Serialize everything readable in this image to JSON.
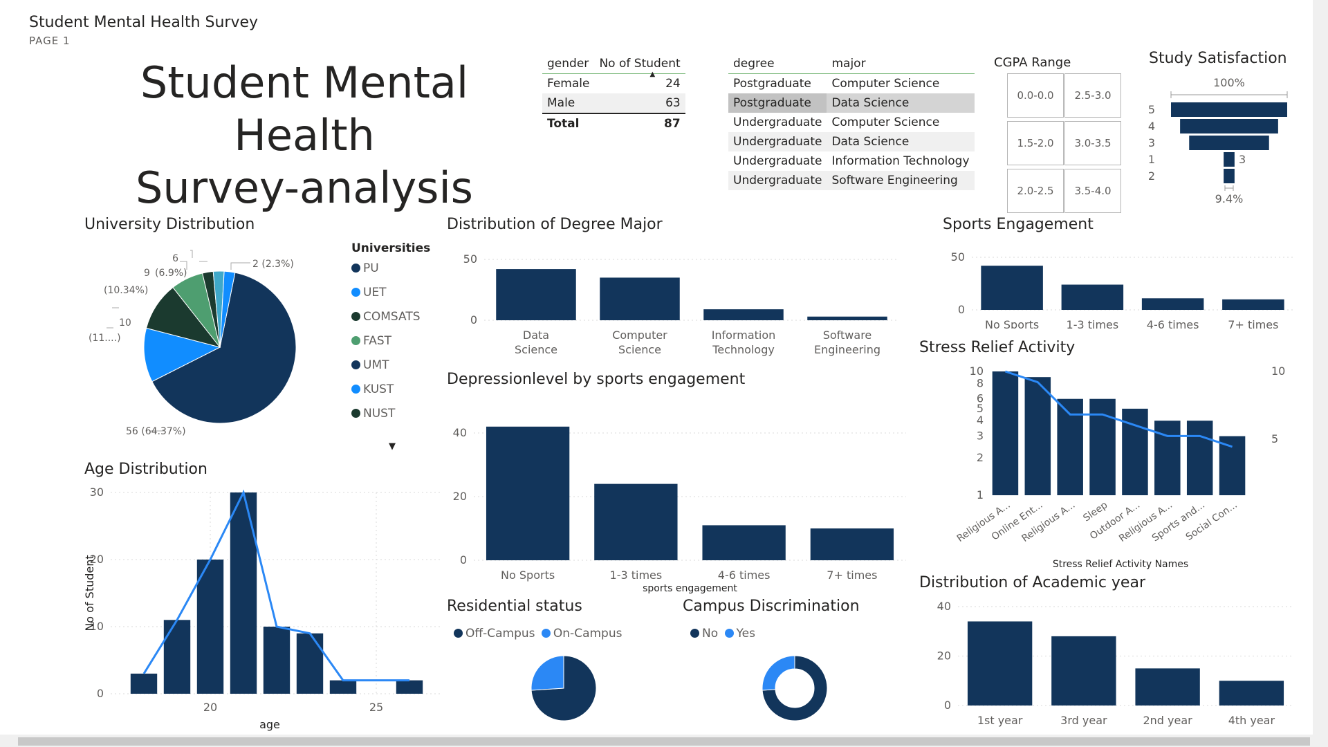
{
  "report": {
    "title": "Student Mental Health Survey",
    "page": "PAGE 1"
  },
  "heading": {
    "line1": "Student Mental Health",
    "line2": "Survey-analysis"
  },
  "gender_table": {
    "headers": [
      "gender",
      "No of Student"
    ],
    "rows": [
      [
        "Female",
        "24"
      ],
      [
        "Male",
        "63"
      ]
    ],
    "total": [
      "Total",
      "87"
    ]
  },
  "degree_table": {
    "headers": [
      "degree",
      "major"
    ],
    "rows": [
      [
        "Postgraduate",
        "Computer Science"
      ],
      [
        "Postgraduate",
        "Data Science"
      ],
      [
        "Undergraduate",
        "Computer Science"
      ],
      [
        "Undergraduate",
        "Data Science"
      ],
      [
        "Undergraduate",
        "Information Technology"
      ],
      [
        "Undergraduate",
        "Software Engineering"
      ]
    ]
  },
  "cgpa": {
    "title": "CGPA Range",
    "options": [
      "0.0-0.0",
      "2.5-3.0",
      "1.5-2.0",
      "3.0-3.5",
      "2.0-2.5",
      "3.5-4.0"
    ]
  },
  "colors": {
    "navy": "#12355b",
    "blue": "#2b88f5",
    "dark": "#1b3a2f",
    "green": "#4e9e70",
    "bright": "#118dff",
    "teal": "#3fa8c9"
  },
  "chart_data": [
    {
      "id": "study-satisfaction",
      "type": "funnel",
      "title": "Study Satisfaction",
      "categories": [
        "5",
        "4",
        "3",
        "1",
        "2"
      ],
      "values": [
        32,
        27,
        22,
        3,
        3
      ],
      "top_label": "100%",
      "bottom_label": "9.4%",
      "data_labels": [
        "3"
      ]
    },
    {
      "id": "university",
      "type": "pie",
      "title": "University Distribution",
      "legend_title": "Universities",
      "categories": [
        "PU",
        "UET",
        "COMSATS",
        "FAST",
        "UMT",
        "KUST",
        "NUST"
      ],
      "values": [
        56,
        10,
        9,
        6,
        2,
        2,
        2
      ],
      "labels": [
        "56 (64.37%)",
        "10",
        "(11....)",
        "9",
        "(10.34%)",
        "6",
        "(6.9%)",
        "2 (2.3%)"
      ]
    },
    {
      "id": "degree-major",
      "type": "bar",
      "title": "Distribution of Degree Major",
      "categories": [
        "Data Science",
        "Computer Science",
        "Information Technology",
        "Software Engineering"
      ],
      "values": [
        42,
        35,
        9,
        3
      ],
      "ylim": [
        0,
        50
      ],
      "ticks": [
        "0",
        "50"
      ]
    },
    {
      "id": "sports",
      "type": "bar",
      "title": "Sports Engagement",
      "categories": [
        "No Sports",
        "1-3 times",
        "4-6 times",
        "7+ times"
      ],
      "values": [
        42,
        24,
        11,
        10
      ],
      "ylim": [
        0,
        50
      ],
      "ticks": [
        "0",
        "50"
      ]
    },
    {
      "id": "depression",
      "type": "bar",
      "title": "Depressionlevel by sports engagement",
      "categories": [
        "No Sports",
        "1-3 times",
        "4-6 times",
        "7+ times"
      ],
      "values": [
        42,
        24,
        11,
        10
      ],
      "ylim": [
        0,
        45
      ],
      "ticks": [
        "0",
        "20",
        "40"
      ],
      "xlabel": "sports engagement"
    },
    {
      "id": "age",
      "type": "bar+line",
      "title": "Age Distribution",
      "x": [
        18,
        19,
        20,
        21,
        22,
        23,
        24,
        26
      ],
      "values": [
        3,
        11,
        20,
        30,
        10,
        9,
        2,
        2
      ],
      "xlim": [
        17,
        27
      ],
      "ylim": [
        0,
        30
      ],
      "xticks": [
        "20",
        "25"
      ],
      "yticks": [
        "0",
        "10",
        "20",
        "30"
      ],
      "xlabel": "age",
      "ylabel": "No of Student"
    },
    {
      "id": "stress",
      "type": "bar+line",
      "title": "Stress Relief Activity",
      "categories": [
        "Religious A...",
        "Online Ent...",
        "Religious A...",
        "Sleep",
        "Outdoor A...",
        "Religious A...",
        "Sports and...",
        "Social Con..."
      ],
      "values": [
        10,
        9,
        6,
        6,
        5,
        4,
        4,
        3
      ],
      "y_scale": "log",
      "left_ticks": [
        "1",
        "2",
        "3",
        "4",
        "5",
        "6",
        "8",
        "10"
      ],
      "right_ticks": [
        "5",
        "10"
      ],
      "xlabel": "Stress Relief Activity Names"
    },
    {
      "id": "residential",
      "type": "pie",
      "title": "Residential status",
      "categories": [
        "Off-Campus",
        "On-Campus"
      ],
      "values": [
        74,
        26
      ]
    },
    {
      "id": "discrimination",
      "type": "donut",
      "title": "Campus Discrimination",
      "categories": [
        "No",
        "Yes"
      ],
      "values": [
        74,
        26
      ]
    },
    {
      "id": "academic-year",
      "type": "bar",
      "title": "Distribution of Academic year",
      "categories": [
        "1st year",
        "3rd year",
        "2nd year",
        "4th year"
      ],
      "values": [
        34,
        28,
        15,
        10
      ],
      "ylim": [
        0,
        40
      ],
      "ticks": [
        "0",
        "20",
        "40"
      ]
    }
  ]
}
